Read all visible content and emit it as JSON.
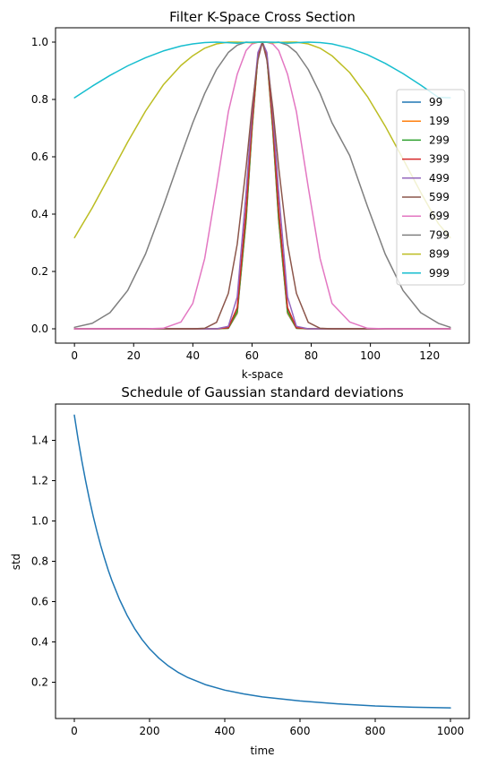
{
  "chart_data": [
    {
      "type": "line",
      "title": "Filter K-Space Cross Section",
      "xlabel": "k-space",
      "ylabel": "",
      "xlim": [
        -6.4,
        133.4
      ],
      "ylim": [
        -0.05,
        1.05
      ],
      "xticks": [
        0,
        20,
        40,
        60,
        80,
        100,
        120
      ],
      "yticks": [
        0.0,
        0.2,
        0.4,
        0.6,
        0.8,
        1.0
      ],
      "xtick_labels": [
        "0",
        "20",
        "40",
        "60",
        "80",
        "100",
        "120"
      ],
      "ytick_labels": [
        "0.0",
        "0.2",
        "0.4",
        "0.6",
        "0.8",
        "1.0"
      ],
      "grid": false,
      "legend_position": "center-right",
      "x": [
        0,
        6,
        12,
        18,
        24,
        30,
        36,
        40,
        44,
        48,
        52,
        55,
        58,
        60,
        62,
        63.5,
        65,
        67,
        69,
        72,
        75,
        79,
        83,
        87,
        93,
        99,
        105,
        111,
        117,
        123,
        127
      ],
      "series": [
        {
          "name": "99",
          "color": "#1f77b4",
          "values": [
            0,
            0,
            0,
            0,
            0,
            0,
            0,
            0,
            0,
            0,
            0.0017,
            0.0537,
            0.375,
            0.6917,
            0.9509,
            1.0,
            0.9509,
            0.6917,
            0.375,
            0.0537,
            0.0017,
            0,
            0,
            0,
            0,
            0,
            0,
            0,
            0,
            0,
            0
          ]
        },
        {
          "name": "199",
          "color": "#ff7f0e",
          "values": [
            0,
            0,
            0,
            0,
            0,
            0,
            0,
            0,
            0,
            0,
            0.0019,
            0.0558,
            0.3793,
            0.6945,
            0.9515,
            1.0,
            0.9515,
            0.6945,
            0.3793,
            0.0558,
            0.0019,
            0,
            0,
            0,
            0,
            0,
            0,
            0,
            0,
            0,
            0
          ]
        },
        {
          "name": "299",
          "color": "#2ca02c",
          "values": [
            0,
            0,
            0,
            0,
            0,
            0,
            0,
            0,
            0,
            0,
            0.0023,
            0.0607,
            0.3893,
            0.7009,
            0.9529,
            1.0,
            0.9529,
            0.7009,
            0.3893,
            0.0607,
            0.0023,
            0,
            0,
            0,
            0,
            0,
            0,
            0,
            0,
            0,
            0
          ]
        },
        {
          "name": "399",
          "color": "#d62728",
          "values": [
            0,
            0,
            0,
            0,
            0,
            0,
            0,
            0,
            0,
            0,
            0.0036,
            0.0738,
            0.4146,
            0.7166,
            0.9563,
            1.0,
            0.9563,
            0.7166,
            0.4146,
            0.0738,
            0.0036,
            0,
            0,
            0,
            0,
            0,
            0,
            0,
            0,
            0,
            0
          ]
        },
        {
          "name": "499",
          "color": "#9467bd",
          "values": [
            0,
            0,
            0,
            0,
            0,
            0,
            0,
            0,
            0,
            0.0001,
            0.0089,
            0.111,
            0.4761,
            0.7525,
            0.9637,
            1.0,
            0.9637,
            0.7525,
            0.4761,
            0.111,
            0.0089,
            0.0001,
            0,
            0,
            0,
            0,
            0,
            0,
            0,
            0,
            0
          ]
        },
        {
          "name": "599",
          "color": "#8c564b",
          "values": [
            0,
            0,
            0,
            0,
            0,
            0,
            0,
            0.0001,
            0.0019,
            0.0224,
            0.1238,
            0.2952,
            0.5628,
            0.7706,
            0.9376,
            1.0,
            0.9376,
            0.7706,
            0.5628,
            0.2952,
            0.1238,
            0.0224,
            0.0019,
            0.0001,
            0,
            0,
            0,
            0,
            0,
            0,
            0
          ]
        },
        {
          "name": "699",
          "color": "#e377c2",
          "values": [
            0,
            0,
            0,
            0,
            0,
            0.0019,
            0.0237,
            0.0889,
            0.2455,
            0.4942,
            0.7572,
            0.8879,
            0.9706,
            0.9933,
            0.9994,
            1.0,
            0.9994,
            0.9933,
            0.9706,
            0.8879,
            0.7572,
            0.4942,
            0.2455,
            0.0889,
            0.0237,
            0.0019,
            0,
            0,
            0,
            0,
            0
          ]
        },
        {
          "name": "799",
          "color": "#7f7f7f",
          "values": [
            0.0053,
            0.0191,
            0.0561,
            0.1337,
            0.2608,
            0.4271,
            0.6044,
            0.7189,
            0.8209,
            0.9046,
            0.9641,
            0.9895,
            1.0,
            0.9985,
            0.9996,
            1.0,
            0.9996,
            0.9985,
            1.0,
            0.9895,
            0.9641,
            0.9046,
            0.8209,
            0.7189,
            0.6044,
            0.4271,
            0.2608,
            0.1337,
            0.0561,
            0.0191,
            0.0053
          ]
        },
        {
          "name": "899",
          "color": "#bcbd22",
          "values": [
            0.318,
            0.4219,
            0.5361,
            0.6516,
            0.7595,
            0.8506,
            0.9189,
            0.9525,
            0.9786,
            0.9939,
            1.0,
            0.9999,
            0.9987,
            0.9979,
            0.9995,
            1.0,
            0.9995,
            0.9979,
            0.9987,
            0.9999,
            1.0,
            0.9939,
            0.9786,
            0.9525,
            0.8936,
            0.8101,
            0.7072,
            0.5925,
            0.4758,
            0.3666,
            0.318
          ]
        },
        {
          "name": "999",
          "color": "#17becf",
          "values": [
            0.8058,
            0.8464,
            0.8837,
            0.9171,
            0.9457,
            0.969,
            0.9861,
            0.9938,
            0.9985,
            0.9999,
            0.998,
            0.9963,
            0.9991,
            0.9998,
            0.9999,
            1.0,
            0.9999,
            0.9998,
            0.9991,
            0.9963,
            0.998,
            0.9999,
            0.9985,
            0.9938,
            0.9788,
            0.9559,
            0.9259,
            0.8902,
            0.8499,
            0.8068,
            0.8058
          ]
        }
      ]
    },
    {
      "type": "line",
      "title": "Schedule of Gaussian standard deviations",
      "xlabel": "time",
      "ylabel": "std",
      "xlim": [
        -50,
        1050
      ],
      "ylim": [
        0.02,
        1.58
      ],
      "xticks": [
        0,
        200,
        400,
        600,
        800,
        1000
      ],
      "yticks": [
        0.2,
        0.4,
        0.6,
        0.8,
        1.0,
        1.2,
        1.4
      ],
      "xtick_labels": [
        "0",
        "200",
        "400",
        "600",
        "800",
        "1000"
      ],
      "ytick_labels": [
        "0.2",
        "0.4",
        "0.6",
        "0.8",
        "1.0",
        "1.2",
        "1.4"
      ],
      "grid": false,
      "x": [
        0,
        10,
        20,
        30,
        40,
        50,
        60,
        70,
        80,
        90,
        100,
        120,
        140,
        160,
        180,
        200,
        225,
        250,
        275,
        300,
        350,
        400,
        450,
        500,
        600,
        700,
        800,
        900,
        1000
      ],
      "series": [
        {
          "color": "#1f77b4",
          "values": [
            1.525,
            1.406,
            1.298,
            1.199,
            1.108,
            1.025,
            0.949,
            0.879,
            0.816,
            0.757,
            0.704,
            0.611,
            0.533,
            0.467,
            0.412,
            0.366,
            0.319,
            0.281,
            0.25,
            0.225,
            0.187,
            0.161,
            0.142,
            0.127,
            0.107,
            0.093,
            0.082,
            0.076,
            0.073
          ]
        }
      ]
    }
  ]
}
